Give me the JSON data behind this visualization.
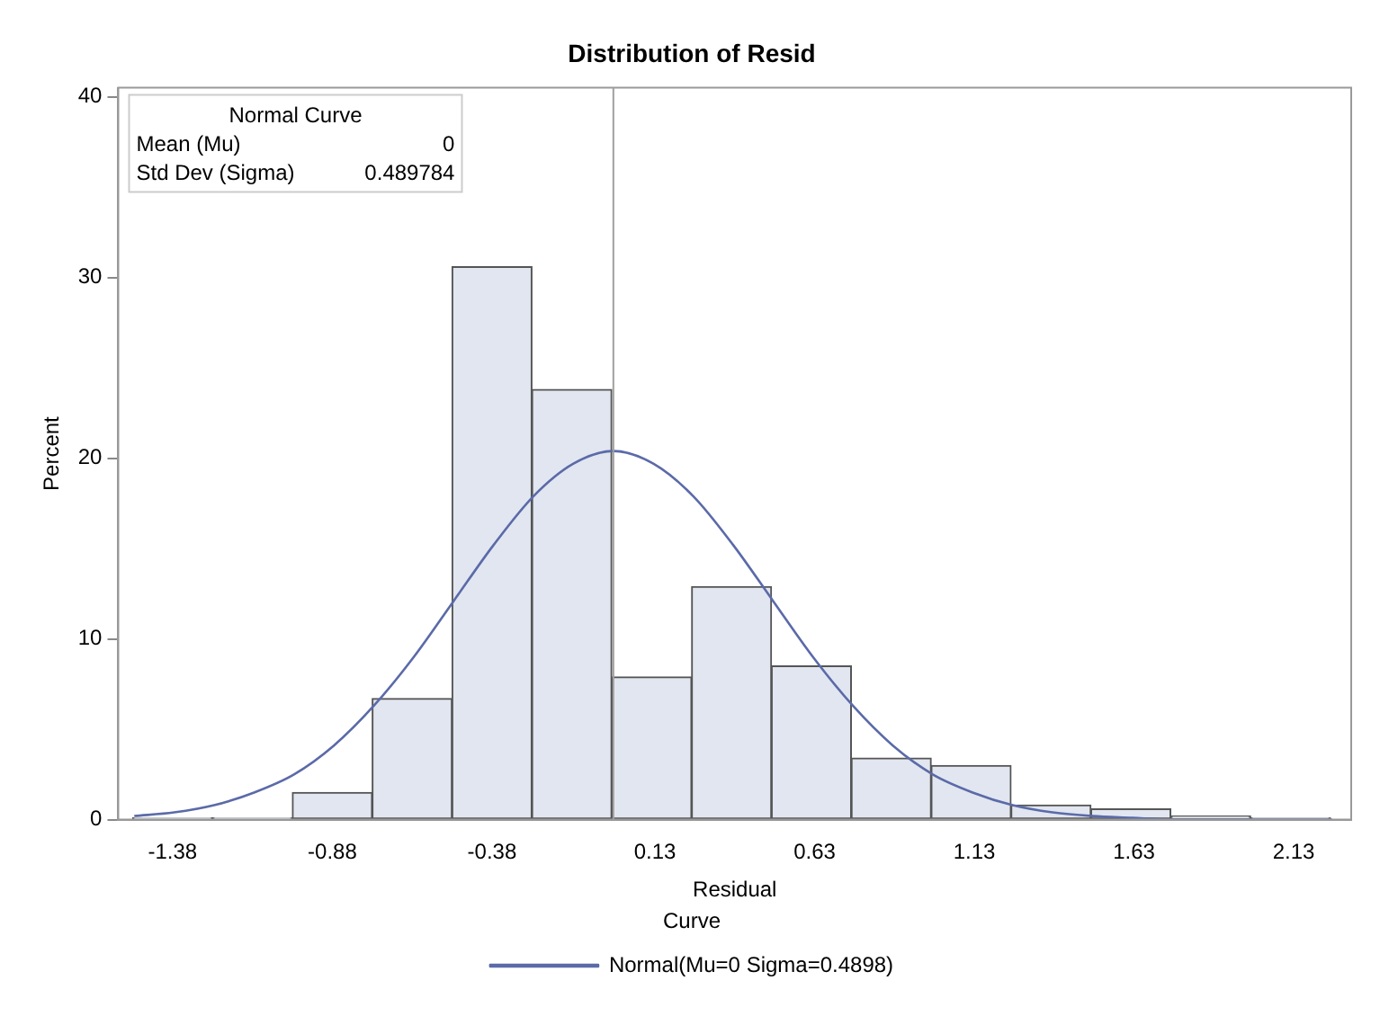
{
  "chart_data": {
    "type": "histogram",
    "title": "Distribution of Resid",
    "xlabel": "Residual",
    "ylabel": "Percent",
    "legend_title": "Curve",
    "legend": "bottom",
    "grid": false,
    "bins": [
      -1.505,
      -1.255,
      -1.005,
      -0.755,
      -0.505,
      -0.255,
      -0.005,
      0.245,
      0.495,
      0.745,
      0.995,
      1.245,
      1.495,
      1.745,
      1.995,
      2.245
    ],
    "values": [
      0.1,
      0.1,
      1.5,
      6.7,
      30.6,
      23.8,
      7.9,
      12.9,
      8.5,
      3.4,
      3.0,
      0.8,
      0.6,
      0.2,
      0.1
    ],
    "color": "#e1e6f0",
    "series": [
      {
        "type": "line",
        "name": "Normal(Mu=0 Sigma=0.4898)",
        "color": "#5b6aa8",
        "marker": "none",
        "x": [
          -1.5,
          -1.375,
          -1.25,
          -1.125,
          -1.0,
          -0.875,
          -0.75,
          -0.625,
          -0.5,
          -0.375,
          -0.25,
          -0.125,
          0,
          0.125,
          0.25,
          0.375,
          0.5,
          0.625,
          0.75,
          0.875,
          1.0,
          1.125,
          1.25,
          1.375,
          1.5,
          1.625,
          1.75,
          1.875,
          2.0,
          2.125,
          2.25
        ],
        "values": [
          0.2,
          0.4,
          0.8,
          1.5,
          2.5,
          4.1,
          6.3,
          9.0,
          12.1,
          15.2,
          17.9,
          19.7,
          20.4,
          19.7,
          17.9,
          15.2,
          12.1,
          9.0,
          6.3,
          4.1,
          2.5,
          1.5,
          0.8,
          0.4,
          0.2,
          0.1,
          0.0,
          0.0,
          0,
          0,
          0
        ]
      }
    ],
    "ref_lines": [
      {
        "axis": "x",
        "value": 0,
        "color": "#a0a0a0"
      }
    ],
    "annotations": [
      "Normal Curve",
      "Mean (Mu)",
      "0",
      "Std Dev (Sigma)",
      "0.489784"
    ],
    "xlim": [
      -1.55,
      2.31
    ],
    "ylim": [
      0,
      40.5
    ],
    "xticks": [
      -1.38,
      -0.88,
      -0.38,
      0.13,
      0.63,
      1.13,
      1.63,
      2.13
    ],
    "yticks": [
      0,
      10,
      20,
      30,
      40
    ]
  }
}
